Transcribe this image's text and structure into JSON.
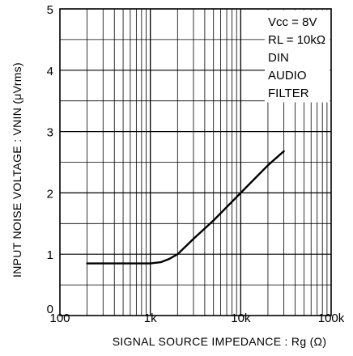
{
  "chart_data": {
    "type": "line",
    "x_scale": "log",
    "xlim": [
      100,
      100000
    ],
    "ylim": [
      0,
      5
    ],
    "x_ticks": [
      100,
      1000,
      10000,
      100000
    ],
    "x_tick_labels": [
      "100",
      "1k",
      "10k",
      "100k"
    ],
    "y_ticks": [
      0,
      1,
      2,
      3,
      4,
      5
    ],
    "y_tick_labels": [
      "0",
      "1",
      "2",
      "3",
      "4",
      "5"
    ],
    "xlabel": "SIGNAL SOURCE IMPEDANCE : Rg (Ω)",
    "ylabel": "INPUT NOISE VOLTAGE : VNIN (μVrms)",
    "grid": true,
    "annotations": [
      "Vcc = 8V",
      "RL = 10kΩ",
      "DIN",
      "AUDIO",
      "FILTER"
    ],
    "series": [
      {
        "x": [
          200,
          500,
          1000,
          1300,
          1600,
          2000,
          3000,
          5000,
          10000,
          20000,
          30000
        ],
        "y": [
          0.85,
          0.85,
          0.85,
          0.87,
          0.92,
          1.0,
          1.25,
          1.55,
          2.0,
          2.45,
          2.68
        ]
      }
    ]
  }
}
